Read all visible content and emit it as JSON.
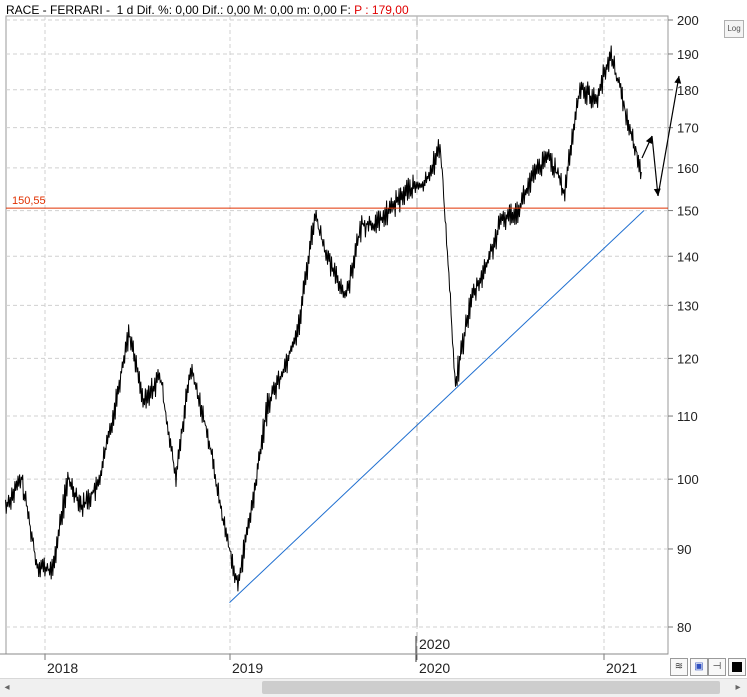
{
  "header": {
    "symbol": "RACE - FERRARI - ",
    "stats": " 1 d Dif. %: 0,00 Dif.: 0,00 M: 0,00 m: 0,00 F: ",
    "price": "P : 179,00"
  },
  "log_button": "Log",
  "colors": {
    "price": "#000000",
    "resistance": "#e03000",
    "trendline": "#1f6fd0",
    "grid": "#d0d0d0"
  },
  "chart_data": {
    "type": "line",
    "scale": "log",
    "ylim": [
      77,
      201
    ],
    "yticks": [
      80,
      90,
      100,
      110,
      120,
      130,
      140,
      150,
      160,
      170,
      180,
      190,
      200
    ],
    "xticks": [
      "2018",
      "2019",
      "2020",
      "2021"
    ],
    "period_marker": "2020",
    "grid": true,
    "series": [
      {
        "x": [
          "2017-10",
          "2017-11",
          "2017-12",
          "2018-01",
          "2018-02",
          "2018-03",
          "2018-04",
          "2018-05",
          "2018-06",
          "2018-07",
          "2018-08",
          "2018-09",
          "2018-10",
          "2018-11",
          "2018-12",
          "2019-01",
          "2019-02",
          "2019-03",
          "2019-04",
          "2019-05",
          "2019-06",
          "2019-07",
          "2019-08",
          "2019-09",
          "2019-10",
          "2019-11",
          "2019-12",
          "2020-01",
          "2020-02",
          "2020-03",
          "2020-04",
          "2020-05",
          "2020-06",
          "2020-07",
          "2020-08",
          "2020-09",
          "2020-10",
          "2020-11",
          "2020-12",
          "2021-01",
          "2021-02",
          "2021-03"
        ],
        "values": [
          96,
          100,
          88,
          87,
          100,
          96,
          99,
          110,
          125,
          112,
          117,
          100,
          118,
          108,
          95,
          85,
          97,
          112,
          118,
          126,
          149,
          138,
          132,
          147,
          147,
          151,
          155,
          156,
          165,
          115,
          131,
          138,
          148,
          150,
          158,
          163,
          154,
          181,
          177,
          190,
          172,
          159
        ]
      }
    ],
    "annotations": {
      "resistance": {
        "value": 150.55,
        "label": "150,55"
      },
      "trendline": {
        "from": [
          "2018-12-31",
          83
        ],
        "to": [
          "2021-03-20",
          150
        ]
      }
    }
  }
}
